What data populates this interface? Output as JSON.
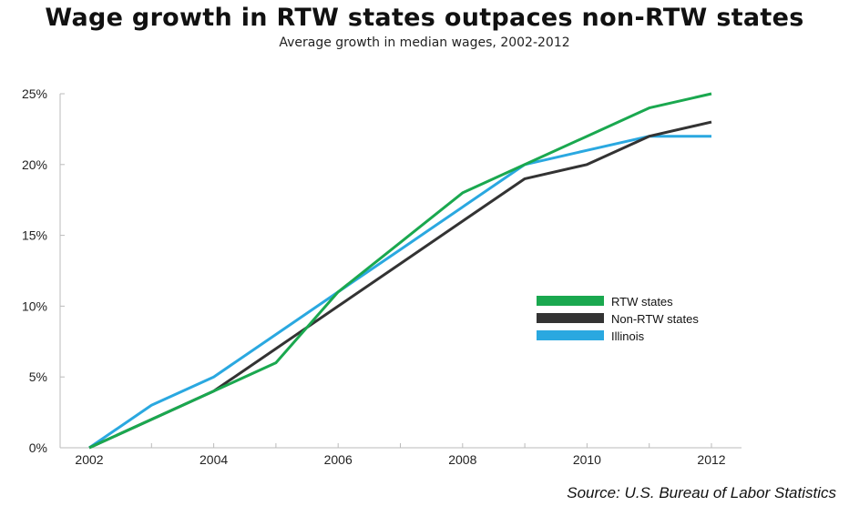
{
  "chart_data": {
    "type": "line",
    "title": "Wage growth in RTW states outpaces non-RTW states",
    "subtitle": "Average growth in median wages, 2002-2012",
    "source": "Source: U.S. Bureau of Labor Statistics",
    "x": [
      2002,
      2003,
      2004,
      2005,
      2006,
      2007,
      2008,
      2009,
      2010,
      2011,
      2012
    ],
    "xticks": [
      "2002",
      "2004",
      "2006",
      "2008",
      "2010",
      "2012"
    ],
    "yticks": [
      "0%",
      "5%",
      "10%",
      "15%",
      "20%",
      "25%"
    ],
    "xlim": [
      2002,
      2012
    ],
    "ylim": [
      0,
      25
    ],
    "grid": false,
    "legend_position": "center-right",
    "series": [
      {
        "name": "RTW states",
        "color": "#1aa84f",
        "values": [
          0,
          2,
          4,
          6,
          11,
          14.5,
          18,
          20,
          22,
          24,
          25
        ]
      },
      {
        "name": "Non-RTW states",
        "color": "#333333",
        "values": [
          0,
          null,
          4,
          7,
          10,
          13,
          16,
          19,
          20,
          22,
          23
        ]
      },
      {
        "name": "Illinois",
        "color": "#2aa8e0",
        "values": [
          0,
          3,
          5,
          8,
          11,
          14,
          null,
          20,
          21,
          22,
          22
        ]
      }
    ]
  }
}
